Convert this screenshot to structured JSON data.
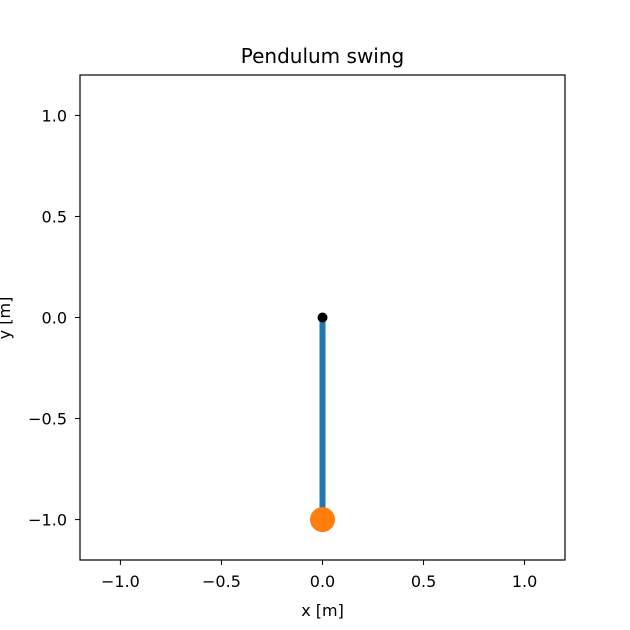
{
  "chart_data": {
    "type": "line",
    "title": "Pendulum swing",
    "xlabel": "x [m]",
    "ylabel": "y [m]",
    "xlim": [
      -1.2,
      1.2
    ],
    "ylim": [
      -1.2,
      1.2
    ],
    "xticks": [
      -1.0,
      -0.5,
      0.0,
      0.5,
      1.0
    ],
    "yticks": [
      -1.0,
      -0.5,
      0.0,
      0.5,
      1.0
    ],
    "xtick_labels": [
      "−1.0",
      "−0.5",
      "0.0",
      "0.5",
      "1.0"
    ],
    "ytick_labels": [
      "−1.0",
      "−0.5",
      "0.0",
      "0.5",
      "1.0"
    ],
    "grid": false,
    "series": [
      {
        "x": [
          0.0,
          0.0
        ],
        "y": [
          0.0,
          -1.0
        ],
        "color": "#1f77b4",
        "style": "rod"
      }
    ],
    "pivot": {
      "x": 0.0,
      "y": 0.0,
      "color": "#000000"
    },
    "bob": {
      "x": 0.0,
      "y": -1.0,
      "color": "#ff7f0e"
    }
  }
}
